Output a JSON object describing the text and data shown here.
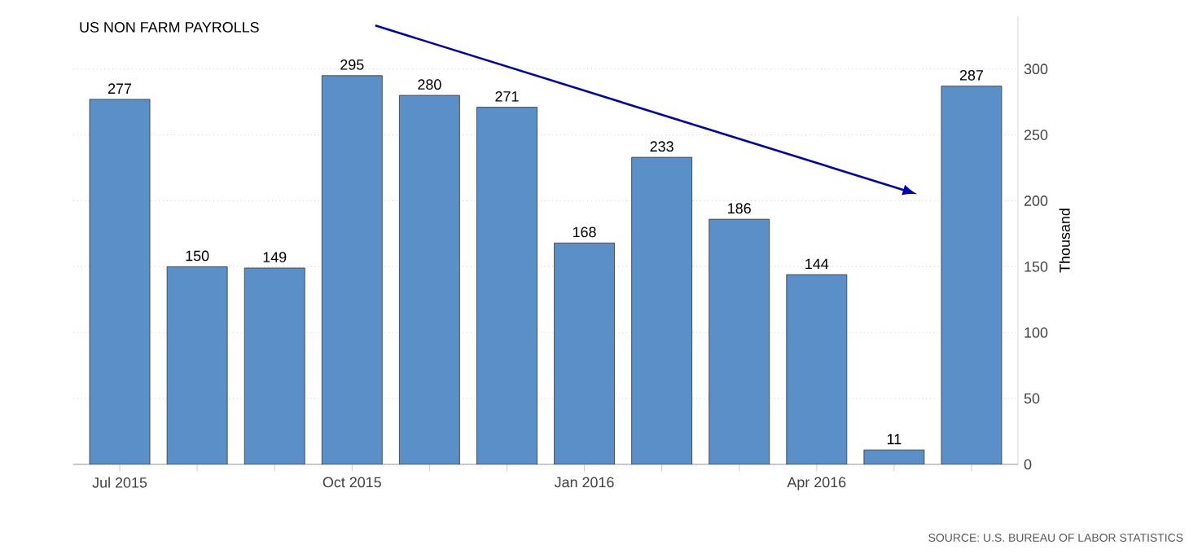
{
  "chart_data": {
    "type": "bar",
    "title": "US NON FARM PAYROLLS",
    "ylabel": "Thousand",
    "categories": [
      "Jul 2015",
      null,
      null,
      "Oct 2015",
      null,
      null,
      "Jan 2016",
      null,
      null,
      "Apr 2016",
      null,
      null
    ],
    "values": [
      277,
      150,
      149,
      295,
      280,
      271,
      168,
      233,
      186,
      144,
      11,
      287
    ],
    "color": "#5b8fc7",
    "data_labels": true,
    "ylim": [
      0,
      340
    ],
    "yticks": [
      0,
      50,
      100,
      150,
      200,
      250,
      300
    ],
    "grid": "y",
    "annotations": [
      "SOURCE: U.S. BUREAU OF LABOR STATISTICS"
    ]
  }
}
